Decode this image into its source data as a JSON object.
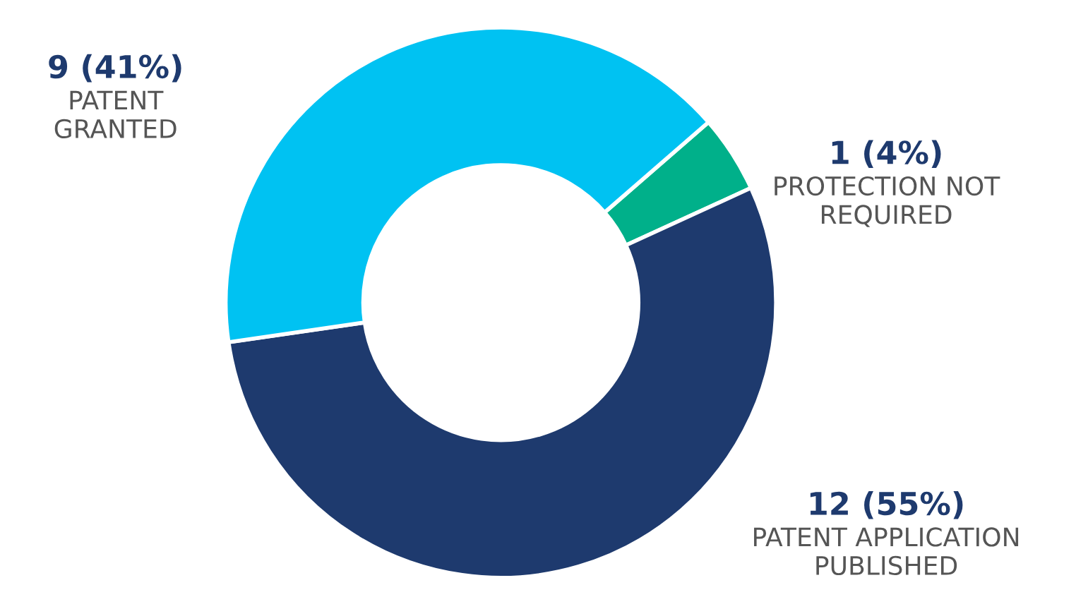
{
  "chart_data": {
    "type": "donut",
    "categories": [
      "PROTECTION NOT\nREQUIRED",
      "PATENT APPLICATION\nPUBLISHED",
      "PATENT\nGRANTED"
    ],
    "values": [
      1,
      12,
      9
    ],
    "colors": [
      "#00b08a",
      "#1e3a6e",
      "#00c2f2"
    ],
    "value_labels": [
      "1 (4%)",
      "12 (55%)",
      "9 (41%)"
    ]
  }
}
